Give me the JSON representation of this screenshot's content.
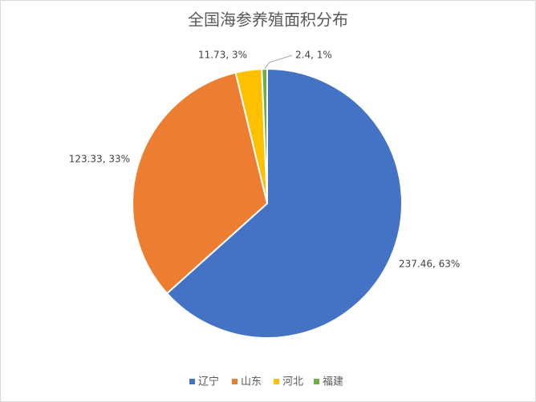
{
  "chart_data": {
    "type": "pie",
    "title": "全国海参养殖面积分布",
    "categories": [
      "辽宁",
      "山东",
      "河北",
      "福建"
    ],
    "values": [
      237.46,
      123.33,
      11.73,
      2.4
    ],
    "value_labels": [
      "237.46, 63%",
      "123.33, 33%",
      "11.73, 3%",
      "2.4, 1%"
    ],
    "colors": [
      "#4472c4",
      "#ed7d31",
      "#ffc000",
      "#70ad47"
    ],
    "legend": "bottom"
  }
}
